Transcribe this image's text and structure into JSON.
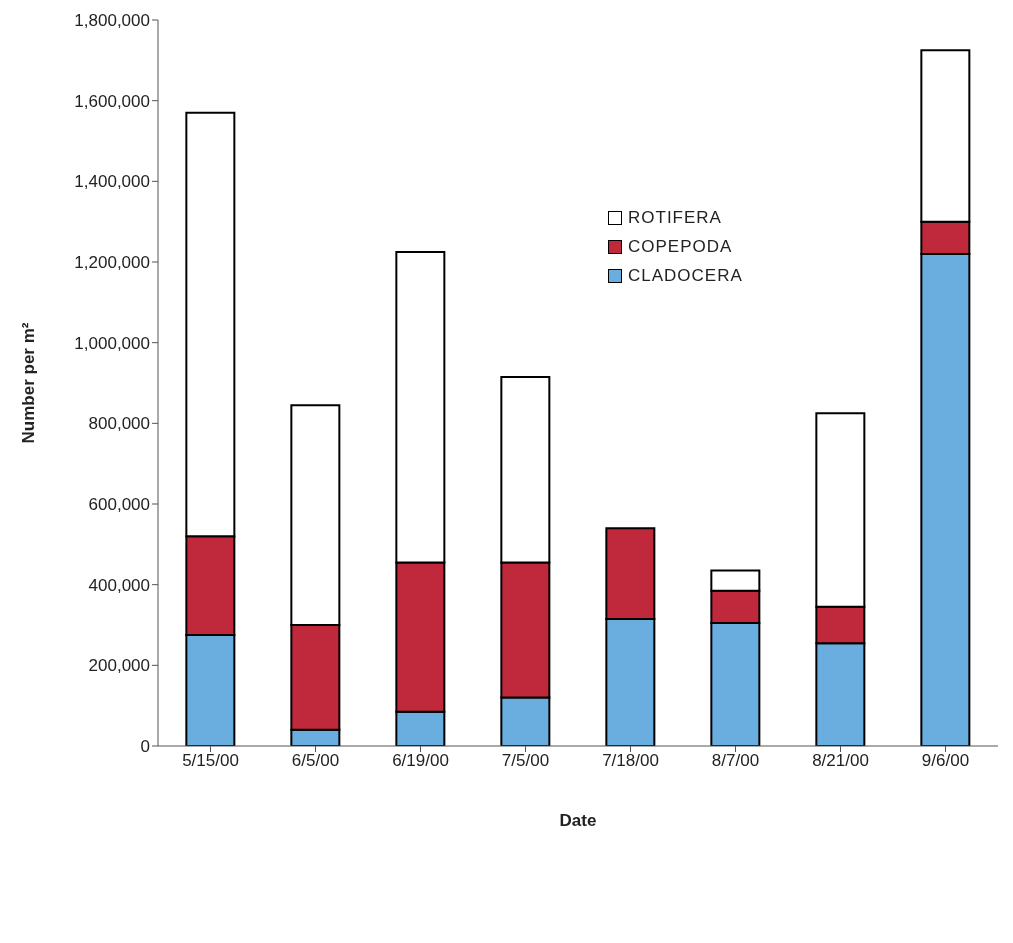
{
  "chart_data": {
    "type": "bar",
    "stacked": true,
    "xlabel": "Date",
    "ylabel": "Number per m²",
    "categories": [
      "5/15/00",
      "6/5/00",
      "6/19/00",
      "7/5/00",
      "7/18/00",
      "8/7/00",
      "8/21/00",
      "9/6/00"
    ],
    "series": [
      {
        "name": "CLADOCERA",
        "color": "#6aaee0",
        "values": [
          275000,
          40000,
          85000,
          120000,
          315000,
          305000,
          255000,
          1220000
        ]
      },
      {
        "name": "COPEPODA",
        "color": "#c0283c",
        "values": [
          245000,
          260000,
          370000,
          335000,
          225000,
          80000,
          90000,
          80000
        ]
      },
      {
        "name": "ROTIFERA",
        "color": "#ffffff",
        "values": [
          1050000,
          545000,
          770000,
          460000,
          0,
          50000,
          480000,
          425000
        ]
      }
    ],
    "ylim": [
      0,
      1800000
    ],
    "yticks": [
      0,
      {
        "value": 200000,
        "label": "200,000"
      },
      {
        "value": 400000,
        "label": "400,000"
      },
      {
        "value": 600000,
        "label": "600,000"
      },
      {
        "value": 800000,
        "label": "800,000"
      },
      {
        "value": 1000000,
        "label": "1,000,000"
      },
      {
        "value": 1200000,
        "label": "1,200,000"
      },
      {
        "value": 1400000,
        "label": "1,400,000"
      },
      {
        "value": 1600000,
        "label": "1,600,000"
      },
      {
        "value": 1800000,
        "label": "1,800,000"
      }
    ],
    "grid": false,
    "legend": "top right"
  }
}
